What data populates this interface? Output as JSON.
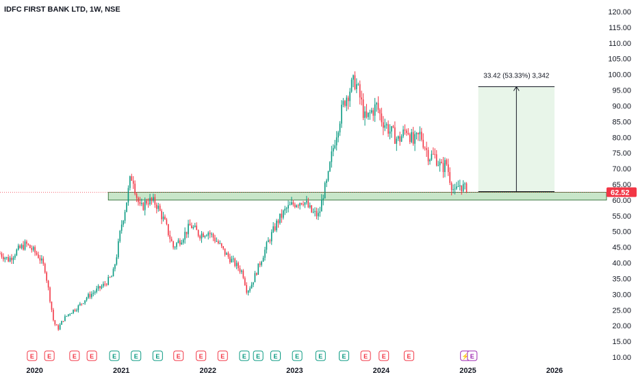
{
  "chart_data": {
    "type": "candlestick",
    "title": "IDFC FIRST BANK LTD, 1W, NSE",
    "y_axis": {
      "position": "right",
      "range": [
        10,
        120
      ],
      "ticks": [
        "120.00",
        "115.00",
        "110.00",
        "105.00",
        "100.00",
        "95.00",
        "90.00",
        "85.00",
        "80.00",
        "75.00",
        "70.00",
        "65.00",
        "60.00",
        "55.00",
        "50.00",
        "45.00",
        "40.00",
        "35.00",
        "30.00",
        "25.00",
        "20.00",
        "15.00",
        "10.00"
      ]
    },
    "x_axis": {
      "range": [
        2019.6,
        2026.6
      ],
      "ticks": [
        {
          "label": "2020",
          "t": 2020.0
        },
        {
          "label": "2021",
          "t": 2021.0
        },
        {
          "label": "2022",
          "t": 2022.0
        },
        {
          "label": "2023",
          "t": 2023.0
        },
        {
          "label": "2024",
          "t": 2024.0
        },
        {
          "label": "2025",
          "t": 2025.0
        },
        {
          "label": "2026",
          "t": 2026.0
        }
      ]
    },
    "last_price": {
      "label": "62.52",
      "value": 62.52,
      "color": "#f23645"
    },
    "colors": {
      "up": "#089981",
      "down": "#f23645",
      "zone": "#c8e6c9",
      "measure": "#e8f5e9"
    },
    "support_zone": {
      "from_t": 2020.85,
      "low": 60.0,
      "high": 62.5
    },
    "measure": {
      "label": "33.42 (53.33%) 3,342",
      "from_t": 2025.12,
      "to_t": 2026.0,
      "low": 62.7,
      "high": 96.1
    },
    "price_path": [
      [
        2019.6,
        43
      ],
      [
        2019.7,
        41
      ],
      [
        2019.8,
        44
      ],
      [
        2019.9,
        46
      ],
      [
        2019.98,
        44
      ],
      [
        2020.05,
        42
      ],
      [
        2020.12,
        38
      ],
      [
        2020.18,
        28
      ],
      [
        2020.22,
        21
      ],
      [
        2020.27,
        19
      ],
      [
        2020.33,
        22
      ],
      [
        2020.4,
        24
      ],
      [
        2020.5,
        26
      ],
      [
        2020.6,
        29
      ],
      [
        2020.7,
        31
      ],
      [
        2020.8,
        33
      ],
      [
        2020.9,
        36
      ],
      [
        2020.95,
        43
      ],
      [
        2021.0,
        52
      ],
      [
        2021.05,
        58
      ],
      [
        2021.1,
        66
      ],
      [
        2021.13,
        68
      ],
      [
        2021.17,
        62
      ],
      [
        2021.22,
        57
      ],
      [
        2021.3,
        60
      ],
      [
        2021.4,
        59
      ],
      [
        2021.5,
        53
      ],
      [
        2021.6,
        45
      ],
      [
        2021.7,
        48
      ],
      [
        2021.8,
        52
      ],
      [
        2021.9,
        49
      ],
      [
        2022.0,
        50
      ],
      [
        2022.1,
        47
      ],
      [
        2022.2,
        43
      ],
      [
        2022.3,
        40
      ],
      [
        2022.4,
        37
      ],
      [
        2022.45,
        31
      ],
      [
        2022.5,
        33
      ],
      [
        2022.6,
        40
      ],
      [
        2022.7,
        47
      ],
      [
        2022.8,
        53
      ],
      [
        2022.9,
        57
      ],
      [
        2023.0,
        59
      ],
      [
        2023.1,
        60
      ],
      [
        2023.2,
        56
      ],
      [
        2023.28,
        55
      ],
      [
        2023.33,
        62
      ],
      [
        2023.38,
        66
      ],
      [
        2023.42,
        73
      ],
      [
        2023.47,
        80
      ],
      [
        2023.52,
        86
      ],
      [
        2023.58,
        92
      ],
      [
        2023.63,
        95
      ],
      [
        2023.7,
        98
      ],
      [
        2023.77,
        91
      ],
      [
        2023.82,
        85
      ],
      [
        2023.88,
        88
      ],
      [
        2023.95,
        90
      ],
      [
        2024.0,
        86
      ],
      [
        2024.1,
        82
      ],
      [
        2024.2,
        79
      ],
      [
        2024.3,
        83
      ],
      [
        2024.37,
        78
      ],
      [
        2024.45,
        81
      ],
      [
        2024.55,
        74
      ],
      [
        2024.62,
        74
      ],
      [
        2024.7,
        70
      ],
      [
        2024.75,
        72
      ],
      [
        2024.8,
        66
      ],
      [
        2024.85,
        62
      ],
      [
        2024.9,
        65
      ],
      [
        2024.95,
        64
      ],
      [
        2025.0,
        62.52
      ]
    ],
    "events": [
      {
        "t": 2019.97,
        "label": "E",
        "color": "#f23645"
      },
      {
        "t": 2020.17,
        "label": "E",
        "color": "#f23645"
      },
      {
        "t": 2020.46,
        "label": "E",
        "color": "#f23645"
      },
      {
        "t": 2020.66,
        "label": "E",
        "color": "#f23645"
      },
      {
        "t": 2020.92,
        "label": "E",
        "color": "#089981"
      },
      {
        "t": 2021.17,
        "label": "E",
        "color": "#089981"
      },
      {
        "t": 2021.42,
        "label": "E",
        "color": "#089981"
      },
      {
        "t": 2021.66,
        "label": "E",
        "color": "#f23645"
      },
      {
        "t": 2021.92,
        "label": "E",
        "color": "#f23645"
      },
      {
        "t": 2022.17,
        "label": "E",
        "color": "#f23645"
      },
      {
        "t": 2022.42,
        "label": "E",
        "color": "#089981"
      },
      {
        "t": 2022.58,
        "label": "E",
        "color": "#089981"
      },
      {
        "t": 2022.78,
        "label": "E",
        "color": "#089981"
      },
      {
        "t": 2023.03,
        "label": "E",
        "color": "#089981"
      },
      {
        "t": 2023.3,
        "label": "E",
        "color": "#089981"
      },
      {
        "t": 2023.57,
        "label": "E",
        "color": "#089981"
      },
      {
        "t": 2023.82,
        "label": "E",
        "color": "#f23645"
      },
      {
        "t": 2024.03,
        "label": "E",
        "color": "#f23645"
      },
      {
        "t": 2024.32,
        "label": "E",
        "color": "#f23645"
      },
      {
        "t": 2024.97,
        "label": "⚡",
        "color": "#9c27b0"
      },
      {
        "t": 2025.05,
        "label": "E",
        "color": "#9c27b0"
      }
    ]
  }
}
